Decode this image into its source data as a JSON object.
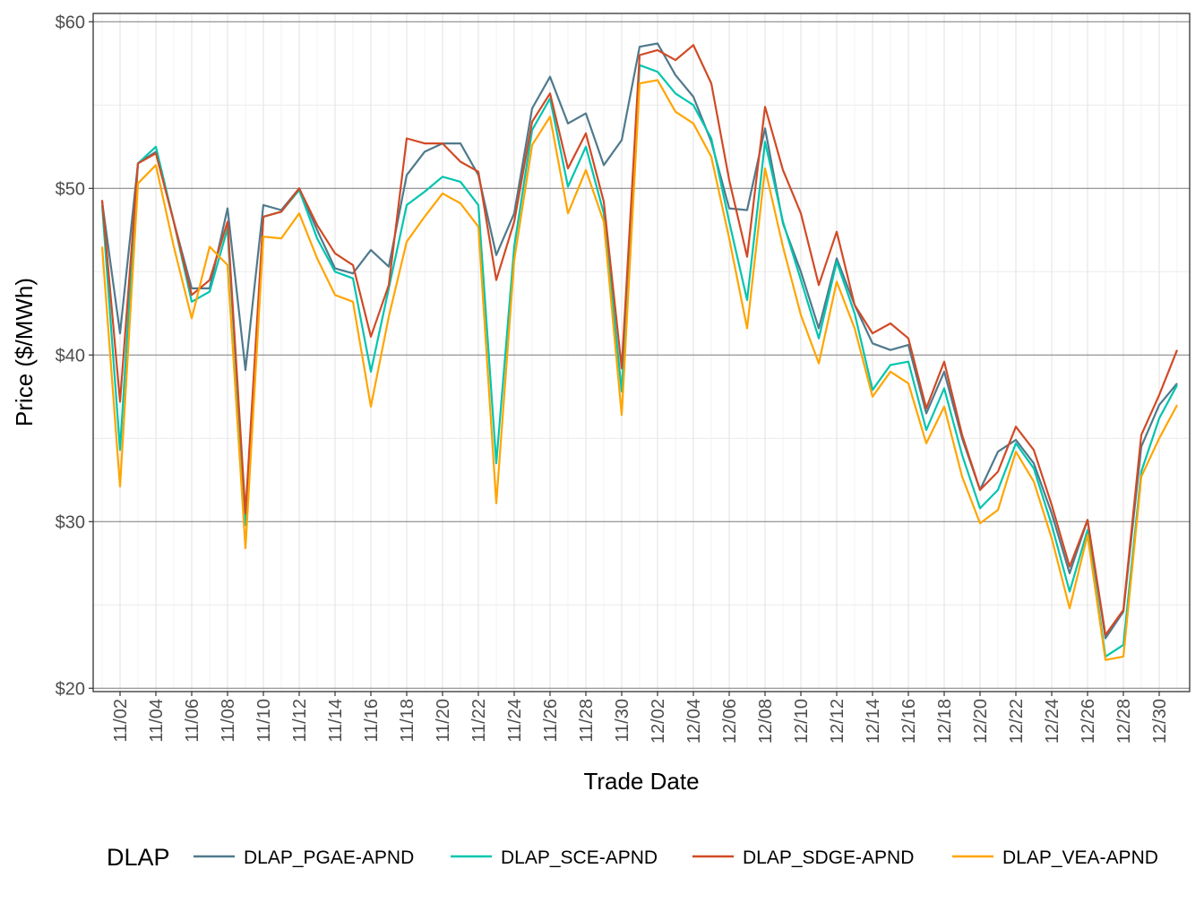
{
  "chart_data": {
    "type": "line",
    "title": "",
    "xlabel": "Trade Date",
    "ylabel": "Price ($/MWh)",
    "ylim": [
      19.8,
      60.5
    ],
    "yticks": [
      20,
      30,
      40,
      50,
      60
    ],
    "ytick_labels": [
      "$20",
      "$30",
      "$40",
      "$50",
      "$60"
    ],
    "xtick_labels": [
      "11/02",
      "11/04",
      "11/06",
      "11/08",
      "11/10",
      "11/12",
      "11/14",
      "11/16",
      "11/18",
      "11/20",
      "11/22",
      "11/24",
      "11/26",
      "11/28",
      "11/30",
      "12/02",
      "12/04",
      "12/06",
      "12/08",
      "12/10",
      "12/12",
      "12/14",
      "12/16",
      "12/18",
      "12/20",
      "12/22",
      "12/24",
      "12/26",
      "12/28",
      "12/30"
    ],
    "grid": true,
    "legend": {
      "title": "DLAP",
      "placement": "bottom"
    },
    "x": [
      "11/01",
      "11/02",
      "11/03",
      "11/04",
      "11/05",
      "11/06",
      "11/07",
      "11/08",
      "11/09",
      "11/10",
      "11/11",
      "11/12",
      "11/13",
      "11/14",
      "11/15",
      "11/16",
      "11/17",
      "11/18",
      "11/19",
      "11/20",
      "11/21",
      "11/22",
      "11/23",
      "11/24",
      "11/25",
      "11/26",
      "11/27",
      "11/28",
      "11/29",
      "11/30",
      "12/01",
      "12/02",
      "12/03",
      "12/04",
      "12/05",
      "12/06",
      "12/07",
      "12/08",
      "12/09",
      "12/10",
      "12/11",
      "12/12",
      "12/13",
      "12/14",
      "12/15",
      "12/16",
      "12/17",
      "12/18",
      "12/19",
      "12/20",
      "12/21",
      "12/22",
      "12/23",
      "12/24",
      "12/25",
      "12/26",
      "12/27",
      "12/28",
      "12/29",
      "12/30",
      "12/31"
    ],
    "series": [
      {
        "name": "DLAP_PGAE-APND",
        "color": "#4F7A8C",
        "values": [
          49.2,
          41.3,
          51.5,
          52.2,
          48.0,
          44.0,
          44.0,
          48.8,
          39.1,
          49.0,
          48.7,
          50.0,
          47.5,
          45.2,
          44.9,
          46.3,
          45.3,
          50.8,
          52.2,
          52.7,
          52.7,
          50.8,
          46.0,
          48.5,
          54.8,
          56.7,
          53.9,
          54.5,
          51.4,
          52.9,
          58.5,
          58.7,
          56.8,
          55.5,
          52.8,
          48.8,
          48.7,
          53.6,
          47.9,
          45.0,
          41.6,
          45.8,
          43.0,
          40.7,
          40.3,
          40.6,
          36.5,
          39.0,
          35.0,
          31.9,
          34.2,
          34.9,
          33.5,
          30.5,
          26.9,
          30.1,
          23.0,
          24.6,
          34.5,
          37.0,
          38.3
        ]
      },
      {
        "name": "DLAP_SCE-APND",
        "color": "#00C5AE",
        "values": [
          49.0,
          34.3,
          51.5,
          52.5,
          48.0,
          43.2,
          43.8,
          47.6,
          29.8,
          48.3,
          48.6,
          49.9,
          47.0,
          45.0,
          44.6,
          39.0,
          44.0,
          49.0,
          49.8,
          50.7,
          50.4,
          49.0,
          33.5,
          46.5,
          53.5,
          55.4,
          50.1,
          52.5,
          48.5,
          37.8,
          57.4,
          57.0,
          55.7,
          55.0,
          53.0,
          48.0,
          43.3,
          52.8,
          48.0,
          44.5,
          41.0,
          45.6,
          42.5,
          37.9,
          39.4,
          39.6,
          35.5,
          38.0,
          34.0,
          30.8,
          31.9,
          34.7,
          33.2,
          29.8,
          25.8,
          29.5,
          21.9,
          22.6,
          33.0,
          36.2,
          38.2
        ]
      },
      {
        "name": "DLAP_SDGE-APND",
        "color": "#D14A26",
        "values": [
          49.3,
          37.2,
          51.5,
          52.1,
          48.0,
          43.6,
          44.5,
          48.0,
          30.5,
          48.3,
          48.6,
          50.0,
          47.8,
          46.1,
          45.4,
          41.1,
          44.2,
          53.0,
          52.7,
          52.7,
          51.6,
          51.0,
          44.5,
          48.0,
          54.0,
          55.7,
          51.2,
          53.3,
          49.2,
          39.2,
          58.0,
          58.3,
          57.7,
          58.6,
          56.3,
          50.5,
          45.9,
          54.9,
          51.1,
          48.5,
          44.2,
          47.4,
          43.0,
          41.3,
          41.9,
          41.0,
          36.8,
          39.6,
          35.2,
          31.9,
          33.0,
          35.7,
          34.3,
          31.0,
          27.3,
          30.1,
          23.2,
          24.7,
          35.2,
          37.6,
          40.3
        ]
      },
      {
        "name": "DLAP_VEA-APND",
        "color": "#FFA500",
        "values": [
          46.5,
          32.1,
          50.3,
          51.4,
          46.5,
          42.2,
          46.5,
          45.4,
          28.4,
          47.1,
          47.0,
          48.5,
          45.8,
          43.6,
          43.2,
          36.9,
          42.3,
          46.8,
          48.3,
          49.7,
          49.1,
          47.7,
          31.1,
          45.7,
          52.6,
          54.3,
          48.5,
          51.1,
          48.0,
          36.4,
          56.3,
          56.5,
          54.6,
          53.9,
          51.9,
          47.0,
          41.6,
          51.2,
          46.5,
          42.4,
          39.5,
          44.4,
          41.6,
          37.5,
          39.0,
          38.3,
          34.7,
          36.9,
          32.7,
          29.9,
          30.7,
          34.2,
          32.4,
          29.0,
          24.8,
          29.2,
          21.7,
          21.9,
          32.7,
          35.0,
          37.0
        ]
      }
    ]
  }
}
